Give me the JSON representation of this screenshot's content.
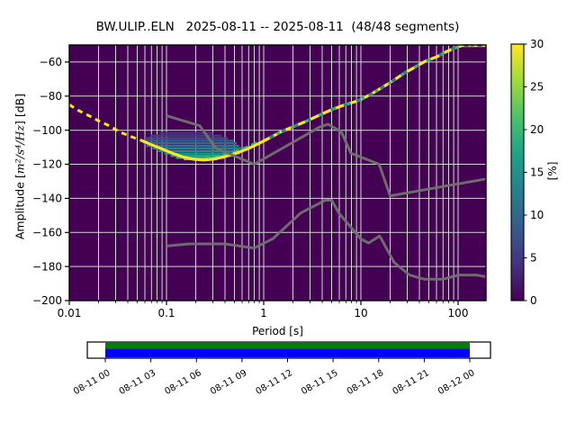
{
  "title": "BW.ULIP..ELN   2025-08-11 -- 2025-08-11  (48/48 segments)",
  "axes": {
    "xlabel": "Period [s]",
    "ylabel_prefix": "Amplitude [",
    "ylabel_math": "m²/s⁴/Hz",
    "ylabel_suffix": "] [dB]"
  },
  "chart_data": {
    "type": "heatmap",
    "title": "BW.ULIP..ELN   2025-08-11 -- 2025-08-11  (48/48 segments)",
    "station_id": "BW.ULIP..ELN",
    "date_range": "2025-08-11 -- 2025-08-11",
    "segments": "48/48 segments",
    "xlabel": "Period [s]",
    "ylabel": "Amplitude [m²/s⁴/Hz] [dB]",
    "x_scale": "log",
    "xlim": [
      0.01,
      194
    ],
    "ylim": [
      -200,
      -50
    ],
    "xticks": [
      0.01,
      0.1,
      1,
      10,
      100
    ],
    "xtick_labels": [
      "0.01",
      "0.1",
      "1",
      "10",
      "100"
    ],
    "yticks": [
      -60,
      -80,
      -100,
      -120,
      -140,
      -160,
      -180,
      -200
    ],
    "ytick_labels": [
      "−60",
      "−80",
      "−100",
      "−120",
      "−140",
      "−160",
      "−180",
      "−200"
    ],
    "grid": true,
    "grid_color": "#d6d6d6",
    "background_color": "#440154",
    "colorbar": {
      "label": "[%]",
      "range": [
        0,
        30
      ],
      "ticks": [
        0,
        5,
        10,
        15,
        20,
        25,
        30
      ],
      "colormap": "viridis",
      "colormap_stops": [
        [
          0.0,
          "#440154"
        ],
        [
          0.14,
          "#46327e"
        ],
        [
          0.29,
          "#365c8d"
        ],
        [
          0.43,
          "#277f8e"
        ],
        [
          0.57,
          "#1fa187"
        ],
        [
          0.71,
          "#4ac16d"
        ],
        [
          0.86,
          "#a0da39"
        ],
        [
          1.0,
          "#fde725"
        ]
      ]
    },
    "mode_curve": {
      "name": "psd-mode-ridge",
      "color": "#fde725",
      "accent_colors": [
        "#26828e",
        "#35b779"
      ],
      "points": [
        [
          0.01,
          -85
        ],
        [
          0.0125,
          -88.5
        ],
        [
          0.016,
          -91.5
        ],
        [
          0.02,
          -94.5
        ],
        [
          0.026,
          -97.5
        ],
        [
          0.033,
          -101
        ],
        [
          0.042,
          -103.5
        ],
        [
          0.055,
          -106
        ],
        [
          0.07,
          -108.5
        ],
        [
          0.09,
          -111
        ],
        [
          0.115,
          -113.5
        ],
        [
          0.15,
          -115.8
        ],
        [
          0.19,
          -117
        ],
        [
          0.24,
          -117.5
        ],
        [
          0.3,
          -117
        ],
        [
          0.4,
          -115.5
        ],
        [
          0.52,
          -113.5
        ],
        [
          0.68,
          -111
        ],
        [
          0.88,
          -108
        ],
        [
          1.15,
          -104.5
        ],
        [
          1.5,
          -101
        ],
        [
          2.0,
          -98
        ],
        [
          2.8,
          -94.5
        ],
        [
          3.8,
          -91
        ],
        [
          5.0,
          -88
        ],
        [
          6.5,
          -85.5
        ],
        [
          8.5,
          -83.5
        ],
        [
          10,
          -82
        ],
        [
          13,
          -78.5
        ],
        [
          17,
          -74.5
        ],
        [
          22,
          -70.5
        ],
        [
          28,
          -66.5
        ],
        [
          36,
          -63
        ],
        [
          46,
          -59.5
        ],
        [
          60,
          -57
        ],
        [
          75,
          -54
        ],
        [
          95,
          -51.5
        ],
        [
          110,
          -50.3
        ],
        [
          194,
          -50.3
        ]
      ]
    },
    "spread_streaks": [
      [
        -101.7,
        0.085,
        0.3,
        "#46307a"
      ],
      [
        -103.2,
        0.068,
        0.37,
        "#453781"
      ],
      [
        -104.7,
        0.06,
        0.43,
        "#404a88"
      ],
      [
        -106.2,
        0.055,
        0.49,
        "#3a5a8c"
      ],
      [
        -107.7,
        0.058,
        0.53,
        "#34688d"
      ],
      [
        -109.2,
        0.062,
        0.56,
        "#2f748e"
      ],
      [
        -110.7,
        0.072,
        0.59,
        "#2a7f8e"
      ],
      [
        -112.2,
        0.082,
        0.62,
        "#25898e"
      ],
      [
        -113.7,
        0.095,
        0.57,
        "#20938c"
      ],
      [
        -115.0,
        0.11,
        0.48,
        "#1fa287"
      ],
      [
        -116.2,
        0.125,
        0.4,
        "#2cb17e"
      ],
      [
        -117.0,
        0.15,
        0.33,
        "#56c667"
      ]
    ],
    "noise_models": {
      "color": "#717171",
      "nhnm": [
        [
          0.1,
          -91.5
        ],
        [
          0.22,
          -97.4
        ],
        [
          0.32,
          -110.5
        ],
        [
          0.8,
          -120.0
        ],
        [
          3.8,
          -98.0
        ],
        [
          4.6,
          -96.5
        ],
        [
          6.3,
          -101.0
        ],
        [
          7.9,
          -113.5
        ],
        [
          15.4,
          -120.0
        ],
        [
          20.0,
          -138.5
        ],
        [
          194,
          -128.6
        ]
      ],
      "nlnm": [
        [
          0.1,
          -168.0
        ],
        [
          0.17,
          -166.7
        ],
        [
          0.4,
          -166.7
        ],
        [
          0.8,
          -169.2
        ],
        [
          1.24,
          -163.7
        ],
        [
          2.4,
          -148.6
        ],
        [
          4.3,
          -141.1
        ],
        [
          5.0,
          -141.1
        ],
        [
          6.0,
          -149.0
        ],
        [
          10.0,
          -163.8
        ],
        [
          12.0,
          -166.2
        ],
        [
          15.6,
          -162.1
        ],
        [
          21.9,
          -177.5
        ],
        [
          31.6,
          -185.0
        ],
        [
          45.0,
          -187.5
        ],
        [
          70.0,
          -187.5
        ],
        [
          101.0,
          -185.0
        ],
        [
          154.0,
          -185.0
        ],
        [
          194.0,
          -186.0
        ]
      ]
    },
    "timeline": {
      "tick_labels": [
        "08-11 00",
        "08-11 03",
        "08-11 06",
        "08-11 09",
        "08-11 12",
        "08-11 15",
        "08-11 18",
        "08-11 21",
        "08-12 00"
      ],
      "bar_top_color": "#008000",
      "bar_bottom_color": "#0000ff",
      "box_fill": "#ffffff",
      "box_stroke": "#000000"
    }
  }
}
